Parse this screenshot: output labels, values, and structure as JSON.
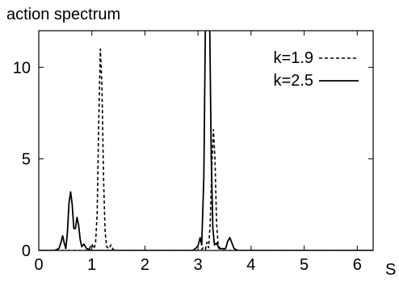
{
  "chart_data": {
    "type": "line",
    "title": "action spectrum",
    "xlabel": "S",
    "ylabel": "",
    "xlim": [
      0,
      6.3
    ],
    "ylim": [
      0,
      12
    ],
    "x_ticks": [
      0,
      1,
      2,
      3,
      4,
      5,
      6
    ],
    "y_ticks": [
      0,
      5,
      10
    ],
    "grid": false,
    "legend_position": "top-right",
    "series": [
      {
        "name": "k=1.9",
        "style": "dashed",
        "color": "#000000",
        "points": [
          [
            0.0,
            0.0
          ],
          [
            0.9,
            0.0
          ],
          [
            0.96,
            0.12
          ],
          [
            1.0,
            0.35
          ],
          [
            1.04,
            0.1
          ],
          [
            1.07,
            0.4
          ],
          [
            1.1,
            2.0
          ],
          [
            1.13,
            7.0
          ],
          [
            1.16,
            11.0
          ],
          [
            1.19,
            9.0
          ],
          [
            1.22,
            4.0
          ],
          [
            1.25,
            1.0
          ],
          [
            1.28,
            0.2
          ],
          [
            1.32,
            0.1
          ],
          [
            1.36,
            0.3
          ],
          [
            1.4,
            0.05
          ],
          [
            1.5,
            0.0
          ],
          [
            3.05,
            0.0
          ],
          [
            3.1,
            0.15
          ],
          [
            3.14,
            0.05
          ],
          [
            3.17,
            0.45
          ],
          [
            3.2,
            0.15
          ],
          [
            3.23,
            1.5
          ],
          [
            3.26,
            4.5
          ],
          [
            3.29,
            6.6
          ],
          [
            3.32,
            5.0
          ],
          [
            3.35,
            1.5
          ],
          [
            3.38,
            0.3
          ],
          [
            3.42,
            0.1
          ],
          [
            3.5,
            0.0
          ],
          [
            6.3,
            0.0
          ]
        ]
      },
      {
        "name": "k=2.5",
        "style": "solid",
        "color": "#000000",
        "points": [
          [
            0.0,
            0.0
          ],
          [
            0.3,
            0.0
          ],
          [
            0.38,
            0.1
          ],
          [
            0.42,
            0.45
          ],
          [
            0.45,
            0.8
          ],
          [
            0.48,
            0.4
          ],
          [
            0.51,
            0.1
          ],
          [
            0.54,
            1.0
          ],
          [
            0.57,
            2.6
          ],
          [
            0.6,
            3.2
          ],
          [
            0.63,
            2.5
          ],
          [
            0.66,
            1.2
          ],
          [
            0.69,
            1.2
          ],
          [
            0.72,
            1.8
          ],
          [
            0.75,
            1.4
          ],
          [
            0.78,
            0.6
          ],
          [
            0.81,
            0.2
          ],
          [
            0.85,
            0.35
          ],
          [
            0.9,
            0.1
          ],
          [
            1.0,
            0.0
          ],
          [
            2.9,
            0.0
          ],
          [
            2.95,
            0.1
          ],
          [
            3.0,
            0.25
          ],
          [
            3.04,
            0.7
          ],
          [
            3.07,
            0.3
          ],
          [
            3.11,
            4.0
          ],
          [
            3.14,
            12.5
          ],
          [
            3.22,
            12.5
          ],
          [
            3.25,
            5.0
          ],
          [
            3.28,
            1.2
          ],
          [
            3.31,
            0.3
          ],
          [
            3.35,
            0.4
          ],
          [
            3.4,
            0.1
          ],
          [
            3.52,
            0.1
          ],
          [
            3.56,
            0.5
          ],
          [
            3.6,
            0.7
          ],
          [
            3.64,
            0.4
          ],
          [
            3.68,
            0.1
          ],
          [
            3.75,
            0.0
          ],
          [
            6.3,
            0.0
          ]
        ]
      }
    ]
  }
}
